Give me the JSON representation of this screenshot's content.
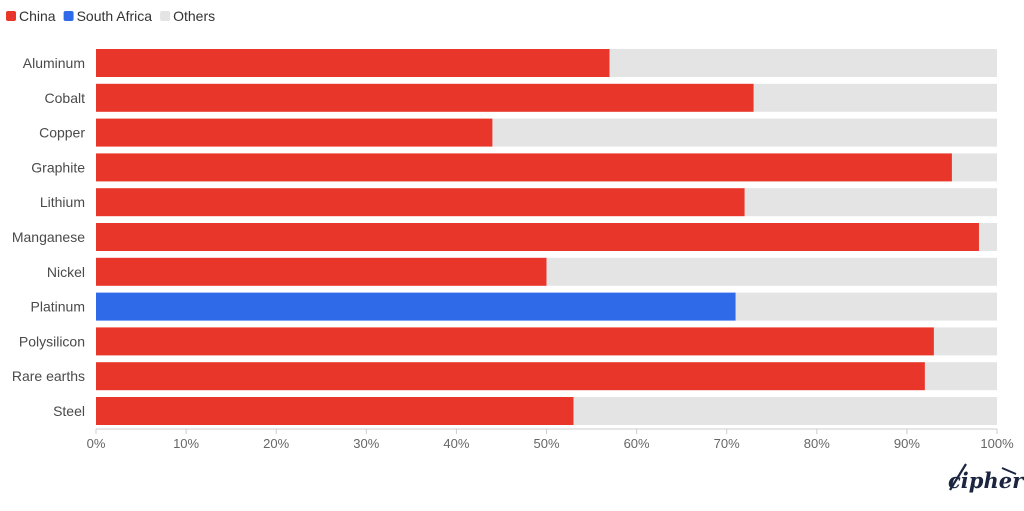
{
  "chart_data": {
    "type": "bar",
    "orientation": "horizontal",
    "stacked": true,
    "categories": [
      "Aluminum",
      "Cobalt",
      "Copper",
      "Graphite",
      "Lithium",
      "Manganese",
      "Nickel",
      "Platinum",
      "Polysilicon",
      "Rare earths",
      "Steel"
    ],
    "series": [
      {
        "name": "China",
        "color": "#e8372a",
        "values": [
          57,
          73,
          44,
          95,
          72,
          98,
          50,
          0,
          93,
          92,
          53
        ]
      },
      {
        "name": "South Africa",
        "color": "#2f6be8",
        "values": [
          0,
          0,
          0,
          0,
          0,
          0,
          0,
          71,
          0,
          0,
          0
        ]
      },
      {
        "name": "Others",
        "color": "#e4e4e4",
        "values": [
          43,
          27,
          56,
          5,
          28,
          2,
          50,
          29,
          7,
          8,
          47
        ]
      }
    ],
    "xlim": [
      0,
      100
    ],
    "x_ticks": [
      "0%",
      "10%",
      "20%",
      "30%",
      "40%",
      "50%",
      "60%",
      "70%",
      "80%",
      "90%",
      "100%"
    ],
    "legend_position": "top-left",
    "grid": false
  },
  "logo": {
    "text": "cipher"
  }
}
